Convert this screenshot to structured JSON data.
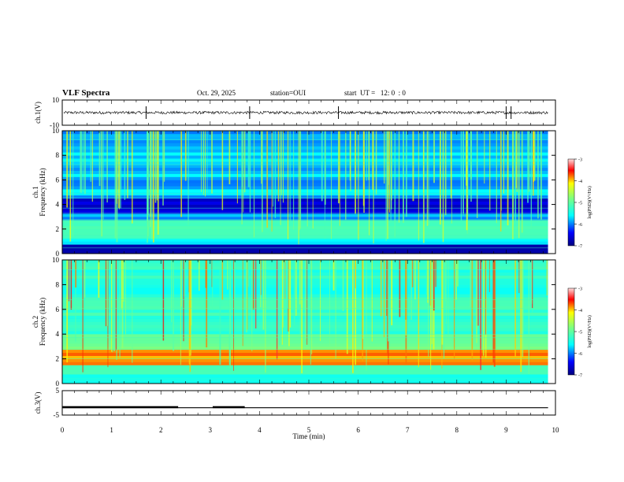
{
  "header": {
    "title": "VLF Spectra",
    "date": "Oct. 29, 2025",
    "station": "station=OUI",
    "start": "start  UT =   12: 0  : 0"
  },
  "colors": {
    "spectrogram_dark": "#00007f",
    "spectrogram_cyan": "#00ffff",
    "spectrogram_green": "#7fff7f",
    "spectrogram_red": "#ff0000",
    "trace": "#000000"
  },
  "chart_data": [
    {
      "type": "line",
      "panel": "ch1-waveform",
      "ylabel": "ch.1(V)",
      "ylim": [
        -10,
        10
      ],
      "yticks": [
        "10",
        "-10"
      ],
      "xlim": [
        0,
        10
      ],
      "baseline_value": 0,
      "spikes_min": [
        1.7,
        3.8,
        5.6,
        9.0,
        9.1
      ]
    },
    {
      "type": "heatmap",
      "panel": "ch1-spectrogram",
      "ylabel": "ch.1\nFrequency (kHz)",
      "ylim": [
        0,
        10
      ],
      "yticks": [
        "0",
        "2",
        "4",
        "6",
        "8",
        "10"
      ],
      "xlim": [
        0,
        9.85
      ],
      "colorbar": {
        "label": "log(PSD)(V²/Hz)",
        "range": [
          -7,
          -3
        ],
        "ticks": [
          "-3",
          "-4",
          "-5",
          "-6",
          "-7"
        ]
      },
      "bands_khz": [
        {
          "from": 1.4,
          "to": 2.6,
          "level": -5.0
        },
        {
          "from": 3.3,
          "to": 4.5,
          "level": -6.6
        }
      ]
    },
    {
      "type": "heatmap",
      "panel": "ch2-spectrogram",
      "ylabel": "ch.2\nFrequency (kHz)",
      "ylim": [
        0,
        10
      ],
      "yticks": [
        "0",
        "2",
        "4",
        "6",
        "8",
        "10"
      ],
      "xlim": [
        0,
        9.85
      ],
      "colorbar": {
        "label": "log(PSD)(V²/Hz)",
        "range": [
          -7,
          -3
        ],
        "ticks": [
          "-3",
          "-4",
          "-5",
          "-6",
          "-7"
        ]
      },
      "bands_khz": [
        {
          "from": 1.7,
          "to": 2.9,
          "level": -3.8
        },
        {
          "from": 2.9,
          "to": 4.0,
          "level": -5.0
        }
      ]
    },
    {
      "type": "line",
      "panel": "ch3-trigger",
      "ylabel": "ch.3(V)",
      "ylim": [
        -5,
        5
      ],
      "yticks": [
        "5",
        "-5"
      ],
      "xlim": [
        0,
        10
      ],
      "baseline_value": -2,
      "high_segments_min": [
        [
          0,
          2.35
        ],
        [
          3.05,
          3.7
        ]
      ]
    }
  ],
  "xaxis": {
    "label": "Time (min)",
    "ticks": [
      "0",
      "1",
      "2",
      "3",
      "4",
      "5",
      "6",
      "7",
      "8",
      "9",
      "10"
    ]
  }
}
